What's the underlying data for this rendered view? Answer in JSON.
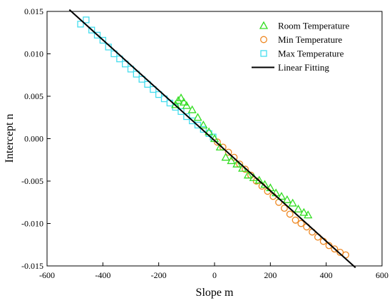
{
  "chart_data": {
    "type": "scatter",
    "xlabel": "Slope m",
    "ylabel": "Intercept  n",
    "xlim": [
      -600,
      600
    ],
    "ylim": [
      -0.015,
      0.015
    ],
    "xticks": [
      -600,
      -400,
      -200,
      0,
      200,
      400,
      600
    ],
    "yticks": [
      0.015,
      0.01,
      0.005,
      0.0,
      -0.005,
      -0.01,
      -0.015
    ],
    "xtick_labels": [
      "-600",
      "-400",
      "-200",
      "0",
      "200",
      "400",
      "600"
    ],
    "ytick_labels": [
      "0.015",
      "0.010",
      "0.005",
      "0.000",
      "-0.005",
      "-0.010",
      "-0.015"
    ],
    "grid": false,
    "legend_position": "top-right",
    "series": [
      {
        "name": "Room Temperature",
        "marker": "triangle",
        "color": "#33dd22",
        "x": [
          -140,
          -130,
          -120,
          -110,
          -100,
          -80,
          -60,
          -40,
          -20,
          0,
          20,
          40,
          60,
          80,
          100,
          120,
          140,
          160,
          180,
          200,
          220,
          240,
          260,
          280,
          300,
          320,
          335
        ],
        "y": [
          0.004,
          0.0045,
          0.0048,
          0.0043,
          0.0039,
          0.0034,
          0.0025,
          0.0016,
          0.0008,
          0.0,
          -0.001,
          -0.0022,
          -0.0026,
          -0.003,
          -0.0035,
          -0.0043,
          -0.0046,
          -0.0049,
          -0.0054,
          -0.0058,
          -0.0064,
          -0.0068,
          -0.0072,
          -0.0076,
          -0.0083,
          -0.0087,
          -0.009
        ]
      },
      {
        "name": "Min Temperature",
        "marker": "circle",
        "color": "#ee8822",
        "x": [
          10,
          30,
          50,
          70,
          90,
          110,
          130,
          150,
          170,
          190,
          210,
          230,
          250,
          270,
          290,
          310,
          330,
          350,
          370,
          390,
          410,
          430,
          450,
          470
        ],
        "y": [
          -0.0004,
          -0.001,
          -0.0016,
          -0.0022,
          -0.003,
          -0.0036,
          -0.0043,
          -0.005,
          -0.0056,
          -0.0062,
          -0.0068,
          -0.0075,
          -0.0082,
          -0.0089,
          -0.0096,
          -0.01,
          -0.0104,
          -0.011,
          -0.0116,
          -0.0121,
          -0.0126,
          -0.013,
          -0.0134,
          -0.0137
        ]
      },
      {
        "name": "Max Temperature",
        "marker": "square",
        "color": "#44ddee",
        "x": [
          -480,
          -460,
          -440,
          -420,
          -400,
          -380,
          -360,
          -340,
          -320,
          -300,
          -280,
          -260,
          -240,
          -220,
          -200,
          -180,
          -160,
          -140,
          -120,
          -100,
          -80,
          -60,
          -40,
          -20,
          -5
        ],
        "y": [
          0.0135,
          0.014,
          0.0128,
          0.0122,
          0.0116,
          0.0108,
          0.01,
          0.0094,
          0.0088,
          0.0082,
          0.0076,
          0.007,
          0.0064,
          0.0058,
          0.0052,
          0.0047,
          0.0042,
          0.0037,
          0.0032,
          0.0026,
          0.0021,
          0.0016,
          0.0011,
          0.0006,
          0.0002
        ]
      },
      {
        "name": "Linear Fitting",
        "marker": "line",
        "color": "#000000",
        "x": [
          -520,
          505
        ],
        "y": [
          0.0152,
          -0.0152
        ]
      }
    ]
  }
}
